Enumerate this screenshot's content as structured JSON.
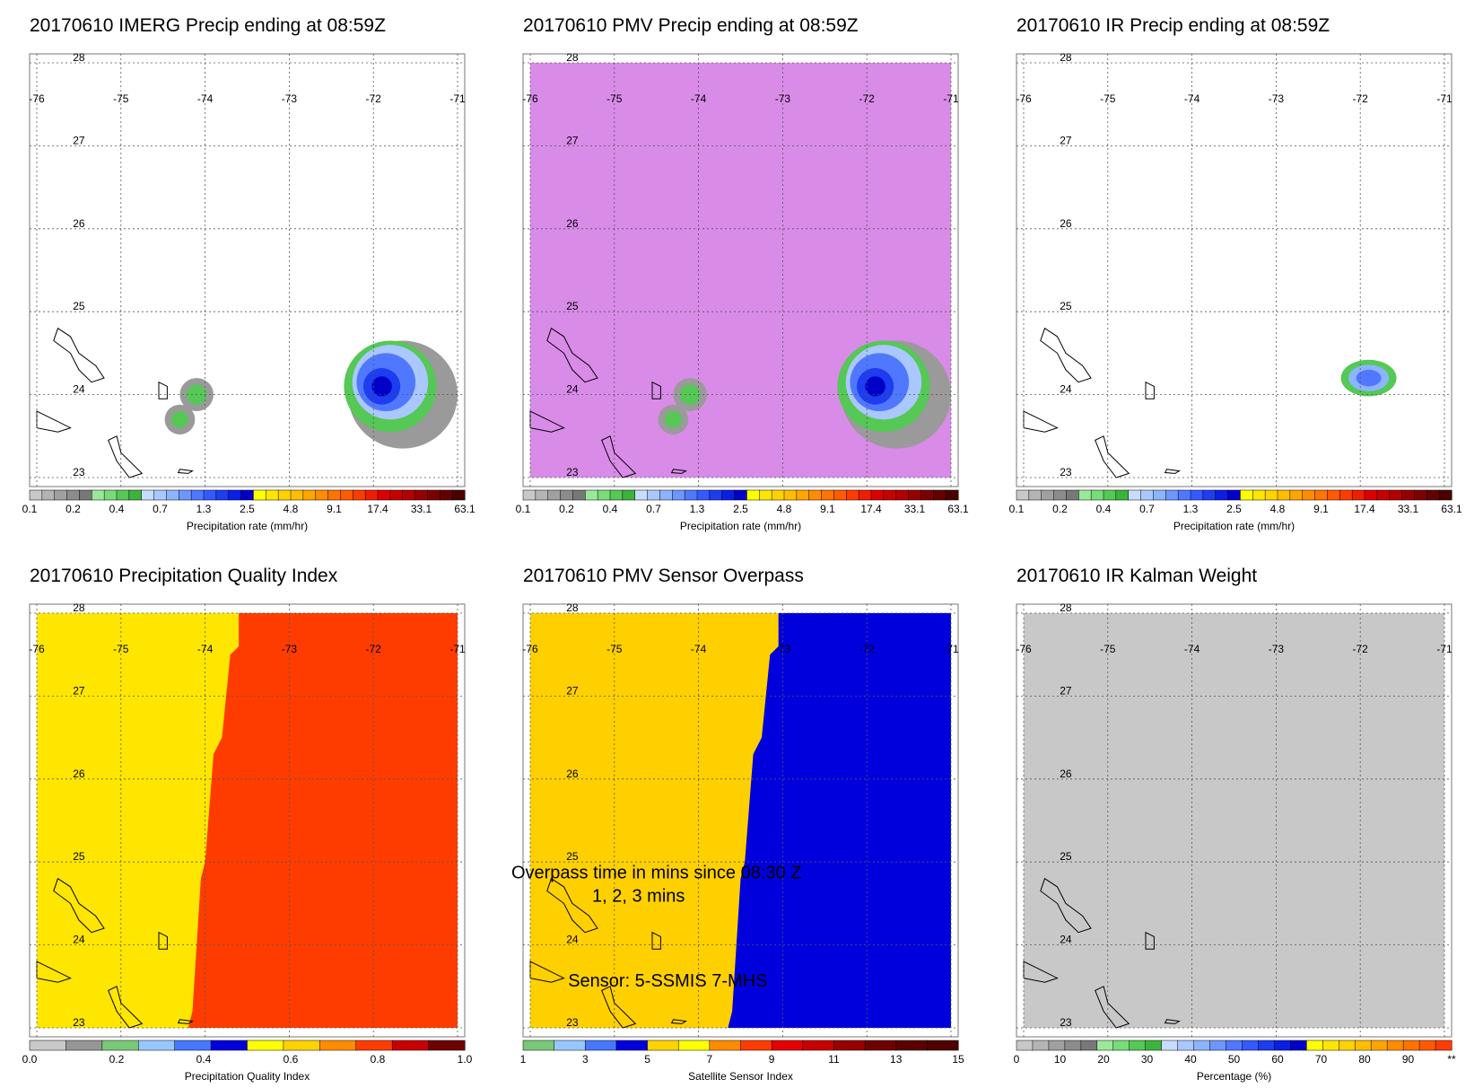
{
  "date": "20170610",
  "map_ticks": {
    "lon": [
      "-76",
      "-75",
      "-74",
      "-73",
      "-72",
      "-71"
    ],
    "lat": [
      "28",
      "27",
      "26",
      "25",
      "24",
      "23"
    ]
  },
  "colors": {
    "missing_fill": "#d98be8",
    "overpass_early": "#ffd000",
    "overpass_late": "#0000dd",
    "quality_low": "#ffe600",
    "quality_high": "#ff3c00",
    "kalman_fill": "#c8c8c8",
    "coast": "#000000"
  },
  "precip_scale": {
    "colors": [
      "#c8c8c8",
      "#b4b4b4",
      "#a0a0a0",
      "#8c8c8c",
      "#787878",
      "#9be89b",
      "#78dc78",
      "#55c855",
      "#3cb43c",
      "#c8dcff",
      "#aac8ff",
      "#8cb4ff",
      "#6e96ff",
      "#5078ff",
      "#325aff",
      "#1e3cf0",
      "#0a1ee6",
      "#0000c8",
      "#ffff00",
      "#ffe600",
      "#ffd200",
      "#ffbe00",
      "#ffa500",
      "#ff8c00",
      "#ff7300",
      "#ff5a00",
      "#ff3c00",
      "#f01e00",
      "#dc0000",
      "#c80000",
      "#b40000",
      "#960000",
      "#7d0000",
      "#640000",
      "#4b0000"
    ],
    "labels": [
      "0.1",
      "0.2",
      "0.4",
      "0.7",
      "1.3",
      "2.5",
      "4.8",
      "9.1",
      "17.4",
      "33.1",
      "63.1"
    ]
  },
  "quality_scale": {
    "colors": [
      "#c8c8c8",
      "#969696",
      "#78c878",
      "#96c8ff",
      "#4678ff",
      "#0000dc",
      "#ffff00",
      "#ffd200",
      "#ff8c00",
      "#ff3c00",
      "#c80000",
      "#6e0000"
    ],
    "labels": [
      "0.0",
      "0.2",
      "0.4",
      "0.6",
      "0.8",
      "1.0"
    ]
  },
  "sensor_scale": {
    "colors": [
      "#78c878",
      "#96c8ff",
      "#4678ff",
      "#0000dc",
      "#ffd200",
      "#ffff00",
      "#ff8c00",
      "#ff3c00",
      "#e60000",
      "#c80000",
      "#960000",
      "#6e0000",
      "#5a0000",
      "#500000"
    ],
    "labels": [
      "1",
      "3",
      "5",
      "7",
      "9",
      "11",
      "13",
      "15"
    ]
  },
  "percent_scale": {
    "colors": [
      "#c8c8c8",
      "#b4b4b4",
      "#a0a0a0",
      "#8c8c8c",
      "#787878",
      "#9be89b",
      "#78dc78",
      "#55c855",
      "#3cb43c",
      "#c8dcff",
      "#aac8ff",
      "#8cb4ff",
      "#6e96ff",
      "#5078ff",
      "#325aff",
      "#1e3cf0",
      "#0a1ee6",
      "#0000c8",
      "#ffff00",
      "#ffe600",
      "#ffd200",
      "#ffbe00",
      "#ffa500",
      "#ff8c00",
      "#ff7300",
      "#ff5a00",
      "#ff3c00"
    ],
    "labels": [
      "0",
      "10",
      "20",
      "30",
      "40",
      "50",
      "60",
      "70",
      "80",
      "90",
      "**"
    ]
  },
  "panels": [
    {
      "id": "imerg",
      "title": "20170610 IMERG Precip ending at 08:59Z",
      "kind": "precip",
      "cells": [
        [
          -71.8,
          24.1,
          1.3
        ],
        [
          -71.5,
          23.8,
          0.3
        ]
      ],
      "colorbar": "precip_scale",
      "colorbar_label": "Precipitation rate (mm/hr)"
    },
    {
      "id": "pmv",
      "title": "20170610 PMV Precip ending at 08:59Z",
      "kind": "precip_missing",
      "cells": [
        [
          -71.8,
          24.1,
          1.4
        ],
        [
          -71.5,
          23.8,
          0.3
        ]
      ],
      "colorbar": "precip_scale",
      "colorbar_label": "Precipitation rate (mm/hr)"
    },
    {
      "id": "ir",
      "title": "20170610 IR Precip ending at 08:59Z",
      "kind": "precip_small",
      "cells": [
        [
          -71.9,
          24.2,
          0.7
        ]
      ],
      "colorbar": "precip_scale",
      "colorbar_label": "Precipitation rate (mm/hr)"
    },
    {
      "id": "pqi",
      "title": "20170610 Precipitation Quality Index",
      "kind": "quality",
      "low_value": 0.5,
      "high_value": 0.8,
      "colorbar": "quality_scale",
      "colorbar_label": "Precipitation Quality Index"
    },
    {
      "id": "overpass",
      "title": "20170610 PMV Sensor Overpass",
      "kind": "overpass",
      "overpass_line1": "Overpass time in mins since 08:30 Z",
      "overpass_line2": "1, 2, 3 mins",
      "sensor_line": "Sensor:   5-SSMIS  7-MHS",
      "colorbar": "sensor_scale",
      "colorbar_label": "Satellite Sensor Index"
    },
    {
      "id": "kalman",
      "title": "20170610 IR Kalman Weight",
      "kind": "kalman",
      "colorbar": "percent_scale",
      "colorbar_label": "Percentage (%)"
    }
  ],
  "chart_data": [
    {
      "type": "heatmap",
      "title": "20170610 IMERG Precip ending at 08:59Z",
      "xlabel": "",
      "ylabel": "",
      "xlim": [
        -76,
        -71
      ],
      "ylim": [
        23,
        28
      ],
      "grid": true,
      "colorbar_label": "Precipitation rate (mm/hr)",
      "points": [
        {
          "lon": -71.8,
          "lat": 24.1,
          "rate_mm_hr": 1.3
        }
      ]
    },
    {
      "type": "heatmap",
      "title": "20170610 PMV Precip ending at 08:59Z",
      "xlim": [
        -76,
        -71
      ],
      "ylim": [
        23,
        28
      ],
      "grid": true,
      "colorbar_label": "Precipitation rate (mm/hr)",
      "points": [
        {
          "lon": -71.8,
          "lat": 24.1,
          "rate_mm_hr": 1.4
        }
      ]
    },
    {
      "type": "heatmap",
      "title": "20170610 IR Precip ending at 08:59Z",
      "xlim": [
        -76,
        -71
      ],
      "ylim": [
        23,
        28
      ],
      "grid": true,
      "colorbar_label": "Precipitation rate (mm/hr)",
      "points": [
        {
          "lon": -71.9,
          "lat": 24.2,
          "rate_mm_hr": 0.7
        }
      ]
    },
    {
      "type": "heatmap",
      "title": "20170610 Precipitation Quality Index",
      "xlim": [
        -76,
        -71
      ],
      "ylim": [
        23,
        28
      ],
      "grid": true,
      "colorbar_label": "Precipitation Quality Index",
      "regions": [
        {
          "side": "west",
          "value": 0.5
        },
        {
          "side": "east",
          "value": 0.8
        }
      ]
    },
    {
      "type": "heatmap",
      "title": "20170610 PMV Sensor Overpass",
      "xlim": [
        -76,
        -71
      ],
      "ylim": [
        23,
        28
      ],
      "grid": true,
      "colorbar_label": "Satellite Sensor Index",
      "regions": [
        {
          "side": "west",
          "sensor_index": 7
        },
        {
          "side": "east",
          "sensor_index": 5
        }
      ]
    },
    {
      "type": "heatmap",
      "title": "20170610 IR Kalman Weight",
      "xlim": [
        -76,
        -71
      ],
      "ylim": [
        23,
        28
      ],
      "grid": true,
      "colorbar_label": "Percentage (%)",
      "regions": [
        {
          "side": "all",
          "value": 0
        }
      ]
    }
  ]
}
